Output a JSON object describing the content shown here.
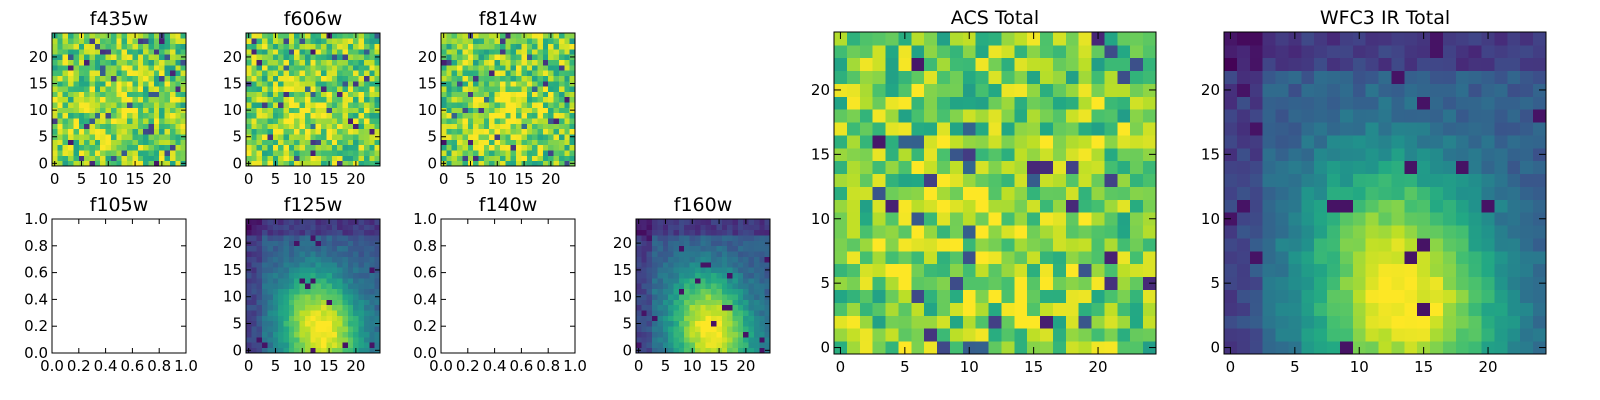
{
  "chart_data": [
    {
      "type": "heatmap",
      "title": "f435w",
      "xticks": [
        "0",
        "5",
        "10",
        "15",
        "20"
      ],
      "yticks": [
        "0",
        "5",
        "10",
        "15",
        "20"
      ],
      "xlim": [
        -0.5,
        24.5
      ],
      "ylim": [
        -0.5,
        24.5
      ],
      "colormap": "viridis",
      "pattern": "noise",
      "values": []
    },
    {
      "type": "heatmap",
      "title": "f606w",
      "xticks": [
        "0",
        "5",
        "10",
        "15",
        "20"
      ],
      "yticks": [
        "0",
        "5",
        "10",
        "15",
        "20"
      ],
      "xlim": [
        -0.5,
        24.5
      ],
      "ylim": [
        -0.5,
        24.5
      ],
      "colormap": "viridis",
      "pattern": "noise",
      "values": []
    },
    {
      "type": "heatmap",
      "title": "f814w",
      "xticks": [
        "0",
        "5",
        "10",
        "15",
        "20"
      ],
      "yticks": [
        "0",
        "5",
        "10",
        "15",
        "20"
      ],
      "xlim": [
        -0.5,
        24.5
      ],
      "ylim": [
        -0.5,
        24.5
      ],
      "colormap": "viridis",
      "pattern": "noise",
      "values": []
    },
    {
      "type": "empty",
      "title": "f105w",
      "xticks": [
        "0.0",
        "0.2",
        "0.4",
        "0.6",
        "0.8",
        "1.0"
      ],
      "yticks": [
        "0.0",
        "0.2",
        "0.4",
        "0.6",
        "0.8",
        "1.0"
      ],
      "xlim": [
        0,
        1
      ],
      "ylim": [
        0,
        1
      ]
    },
    {
      "type": "heatmap",
      "title": "f125w",
      "xticks": [
        "0",
        "5",
        "10",
        "15",
        "20"
      ],
      "yticks": [
        "0",
        "5",
        "10",
        "15",
        "20"
      ],
      "xlim": [
        -0.5,
        24.5
      ],
      "ylim": [
        -0.5,
        24.5
      ],
      "colormap": "viridis",
      "pattern": "blob",
      "values": []
    },
    {
      "type": "empty",
      "title": "f140w",
      "xticks": [
        "0.0",
        "0.2",
        "0.4",
        "0.6",
        "0.8",
        "1.0"
      ],
      "yticks": [
        "0.0",
        "0.2",
        "0.4",
        "0.6",
        "0.8",
        "1.0"
      ],
      "xlim": [
        0,
        1
      ],
      "ylim": [
        0,
        1
      ]
    },
    {
      "type": "heatmap",
      "title": "f160w",
      "xticks": [
        "0",
        "5",
        "10",
        "15",
        "20"
      ],
      "yticks": [
        "0",
        "5",
        "10",
        "15",
        "20"
      ],
      "xlim": [
        -0.5,
        24.5
      ],
      "ylim": [
        -0.5,
        24.5
      ],
      "colormap": "viridis",
      "pattern": "blob",
      "values": []
    },
    {
      "type": "heatmap",
      "title": "ACS Total",
      "xticks": [
        "0",
        "5",
        "10",
        "15",
        "20"
      ],
      "yticks": [
        "0",
        "5",
        "10",
        "15",
        "20"
      ],
      "xlim": [
        -0.5,
        24.5
      ],
      "ylim": [
        -0.5,
        24.5
      ],
      "colormap": "viridis",
      "pattern": "noise",
      "values": []
    },
    {
      "type": "heatmap",
      "title": "WFC3 IR Total",
      "xticks": [
        "0",
        "5",
        "10",
        "15",
        "20"
      ],
      "yticks": [
        "0",
        "5",
        "10",
        "15",
        "20"
      ],
      "xlim": [
        -0.5,
        24.5
      ],
      "ylim": [
        -0.5,
        24.5
      ],
      "colormap": "viridis",
      "pattern": "blob",
      "values": []
    }
  ]
}
